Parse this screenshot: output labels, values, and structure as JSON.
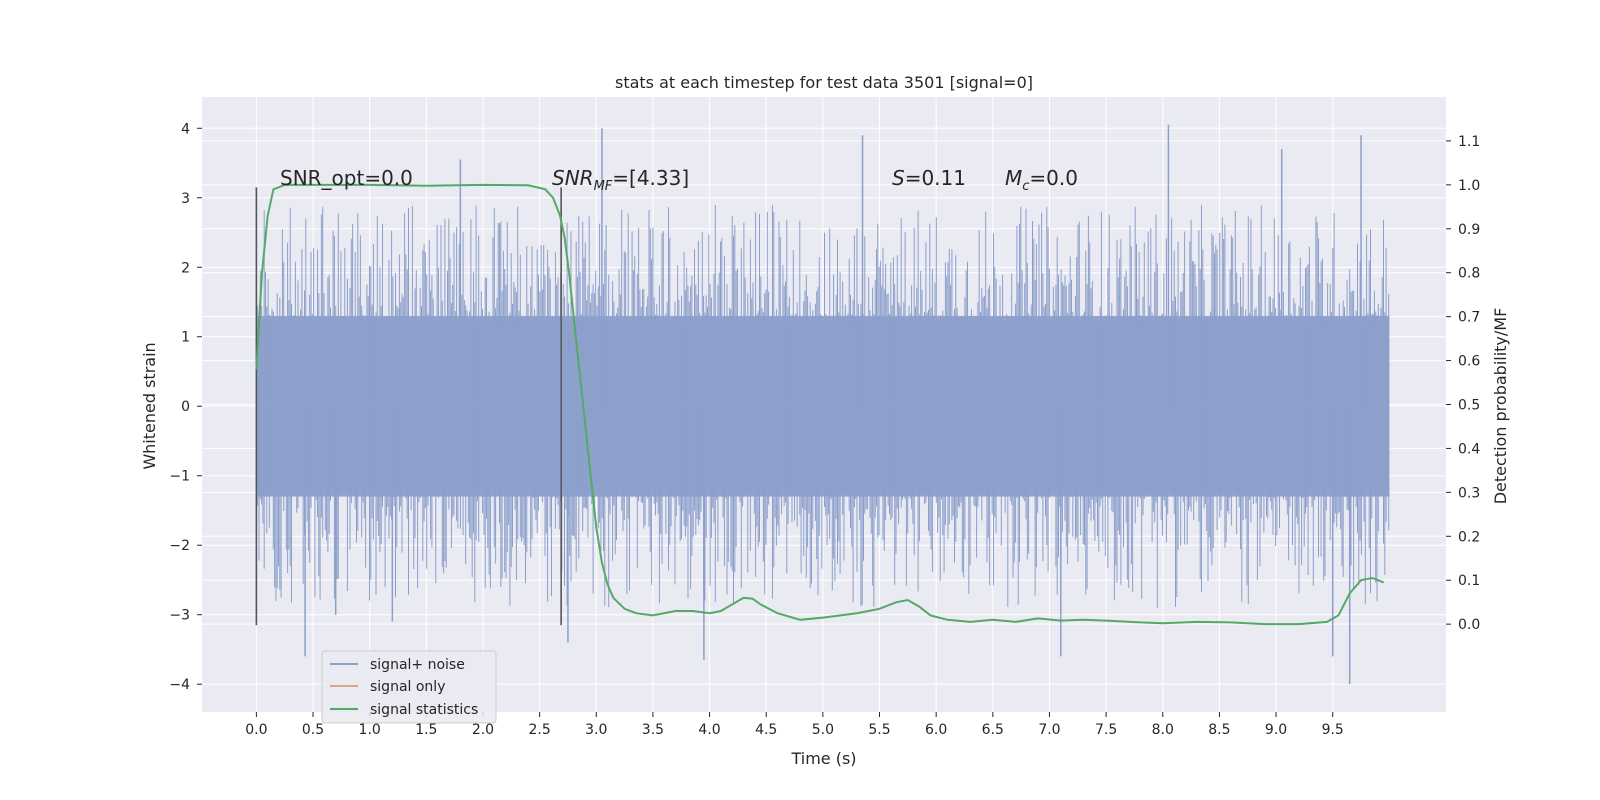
{
  "chart_data": {
    "type": "line",
    "title": "stats at each timestep for test data 3501 [signal=0]",
    "xlabel": "Time (s)",
    "ylabel_left": "Whitened strain",
    "ylabel_right": "Detection probability/MF",
    "xlim": [
      -0.48,
      10.5
    ],
    "ylim_left": [
      -4.4,
      4.45
    ],
    "ylim_right": [
      -0.2,
      1.2
    ],
    "x_ticks": [
      0.0,
      0.5,
      1.0,
      1.5,
      2.0,
      2.5,
      3.0,
      3.5,
      4.0,
      4.5,
      5.0,
      5.5,
      6.0,
      6.5,
      7.0,
      7.5,
      8.0,
      8.5,
      9.0,
      9.5
    ],
    "x_tick_labels": [
      "0.0",
      "0.5",
      "1.0",
      "1.5",
      "2.0",
      "2.5",
      "3.0",
      "3.5",
      "4.0",
      "4.5",
      "5.0",
      "5.5",
      "6.0",
      "6.5",
      "7.0",
      "7.5",
      "8.0",
      "8.5",
      "9.0",
      "9.5"
    ],
    "y_ticks_left": [
      4,
      3,
      2,
      1,
      0,
      -1,
      -2,
      -3,
      -4
    ],
    "y_tick_labels_left": [
      "4",
      "3",
      "2",
      "1",
      "0",
      "−1",
      "−2",
      "−3",
      "−4"
    ],
    "y_ticks_right": [
      1.1,
      1.0,
      0.9,
      0.8,
      0.7,
      0.6,
      0.5,
      0.4,
      0.3,
      0.2,
      0.1,
      0.0
    ],
    "y_tick_labels_right": [
      "1.1",
      "1.0",
      "0.9",
      "0.8",
      "0.7",
      "0.6",
      "0.5",
      "0.4",
      "0.3",
      "0.2",
      "0.1",
      "0.0"
    ],
    "grid": true,
    "legend_position": "lower-left",
    "legend": [
      {
        "label": "signal+ noise",
        "color": "#8c9fcb"
      },
      {
        "label": "signal only",
        "color": "#e0a48a"
      },
      {
        "label": "signal statistics",
        "color": "#55a868"
      }
    ],
    "annotations": {
      "snr_opt": "SNR_opt=0.0",
      "snr_mf_main": "SNR",
      "snr_mf_sub": "MF",
      "snr_mf_value": "=[4.33]",
      "s_main": "S",
      "s_value": "=0.11",
      "mc_main": "M",
      "mc_sub": "c",
      "mc_value": "=0.0"
    },
    "vertical_markers": [
      0.0,
      2.69
    ],
    "noise_series": {
      "name": "signal+ noise",
      "x_start": 0.0,
      "x_end": 10.0,
      "envelope": [
        -1.3,
        1.3
      ],
      "extremes": [
        [
          0.0,
          3.15
        ],
        [
          0.0,
          -3.15
        ],
        [
          0.43,
          -3.6
        ],
        [
          0.7,
          -3.0
        ],
        [
          1.2,
          -3.1
        ],
        [
          1.8,
          3.55
        ],
        [
          2.69,
          3.15
        ],
        [
          2.69,
          -3.15
        ],
        [
          2.75,
          -3.4
        ],
        [
          3.05,
          4.0
        ],
        [
          3.95,
          -3.65
        ],
        [
          5.35,
          3.9
        ],
        [
          7.1,
          -3.6
        ],
        [
          8.05,
          4.05
        ],
        [
          9.05,
          3.7
        ],
        [
          9.5,
          -3.6
        ],
        [
          9.65,
          -4.0
        ],
        [
          9.75,
          3.9
        ]
      ]
    },
    "statistics_series": {
      "name": "signal statistics",
      "x": [
        0.0,
        0.05,
        0.1,
        0.15,
        0.25,
        0.5,
        1.0,
        1.5,
        2.0,
        2.4,
        2.55,
        2.62,
        2.68,
        2.72,
        2.76,
        2.8,
        2.85,
        2.9,
        2.95,
        3.0,
        3.05,
        3.1,
        3.15,
        3.25,
        3.35,
        3.5,
        3.7,
        3.85,
        4.0,
        4.1,
        4.2,
        4.3,
        4.38,
        4.45,
        4.6,
        4.8,
        5.0,
        5.3,
        5.5,
        5.65,
        5.75,
        5.85,
        5.95,
        6.1,
        6.3,
        6.5,
        6.7,
        6.9,
        7.1,
        7.3,
        7.5,
        7.8,
        8.0,
        8.3,
        8.6,
        8.9,
        9.2,
        9.45,
        9.55,
        9.65,
        9.75,
        9.85,
        9.95
      ],
      "y": [
        0.58,
        0.8,
        0.93,
        0.99,
        1.0,
        1.0,
        1.0,
        0.998,
        1.0,
        0.999,
        0.99,
        0.97,
        0.93,
        0.88,
        0.8,
        0.7,
        0.58,
        0.46,
        0.34,
        0.22,
        0.14,
        0.09,
        0.06,
        0.035,
        0.025,
        0.02,
        0.03,
        0.03,
        0.025,
        0.03,
        0.045,
        0.06,
        0.058,
        0.045,
        0.025,
        0.01,
        0.015,
        0.025,
        0.035,
        0.05,
        0.055,
        0.04,
        0.02,
        0.01,
        0.005,
        0.01,
        0.005,
        0.013,
        0.008,
        0.01,
        0.008,
        0.004,
        0.002,
        0.005,
        0.004,
        0.0,
        0.0,
        0.005,
        0.02,
        0.07,
        0.1,
        0.105,
        0.095
      ]
    }
  }
}
